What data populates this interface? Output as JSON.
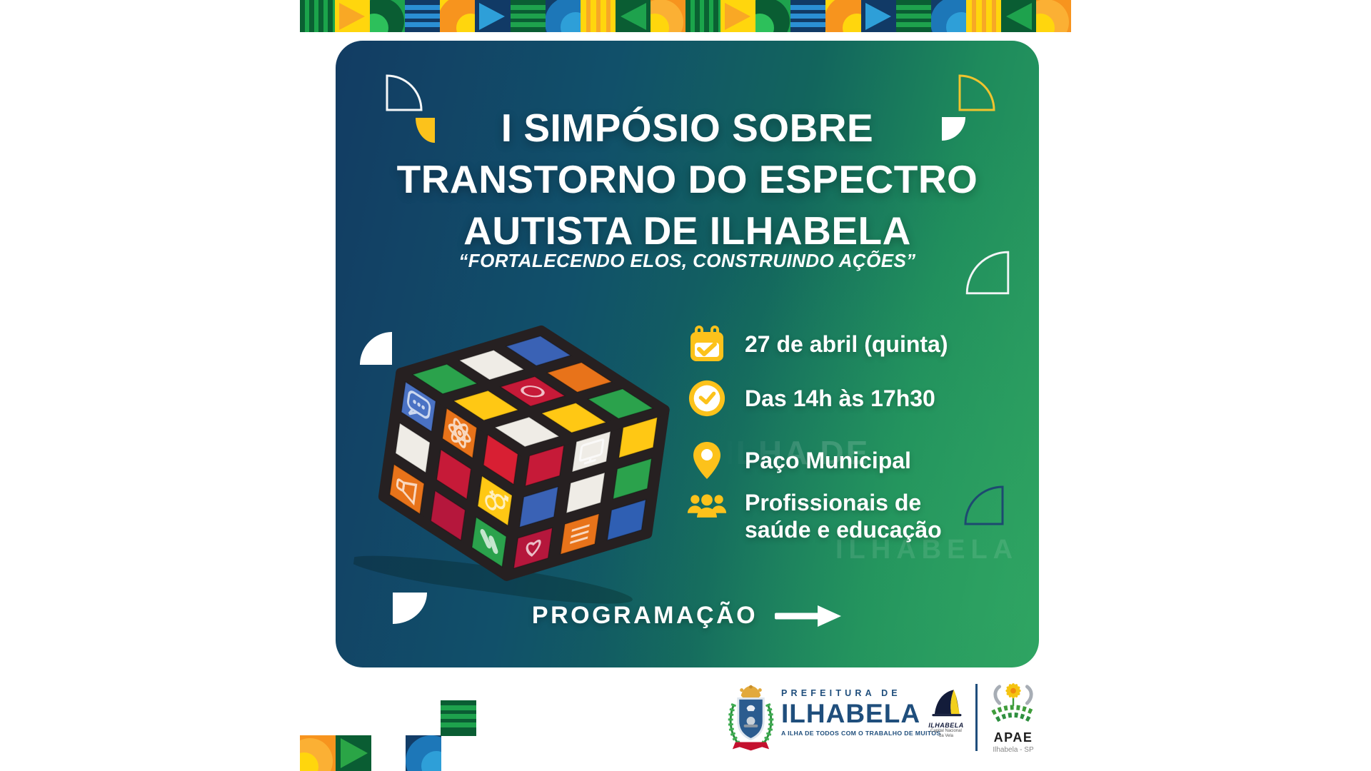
{
  "band": {
    "pattern": [
      "g-stripes",
      "y-tri",
      "g-quarter",
      "b-bars",
      "y-quarter",
      "b-tri",
      "g-bars",
      "b-quarter",
      "y-stripes",
      "g-tri-l",
      "o-quarter",
      "g-stripes",
      "y-tri",
      "g-quarter",
      "b-bars",
      "y-quarter",
      "b-tri",
      "g-bars",
      "b-quarter",
      "y-stripes",
      "g-tri-l",
      "o-quarter"
    ]
  },
  "flyer": {
    "title_lines": [
      "I SIMPÓSIO SOBRE",
      "TRANSTORNO DO ESPECTRO",
      "AUTISTA DE ILHABELA"
    ],
    "subtitle": "“FORTALECENDO ELOS, CONSTRUINDO AÇÕES”",
    "details": [
      {
        "icon": "calendar-check-icon",
        "text": "27 de abril (quinta)"
      },
      {
        "icon": "clock-icon",
        "text": "Das 14h às 17h30"
      },
      {
        "icon": "location-pin-icon",
        "text": "Paço Municipal"
      },
      {
        "icon": "people-icon",
        "text": "Profissionais de\nsaúde e educação"
      }
    ],
    "cta_label": "PROGRAMAÇÃO",
    "watermarks": [
      "ILHA DE",
      "ILHABELA"
    ]
  },
  "cube": {
    "face_top": [
      "#2ba24c",
      "#efece6",
      "#3a62b5",
      "#ffc814",
      "#c61a38",
      "#e8731a",
      "#efece6",
      "#ffc814",
      "#2ba24c"
    ],
    "face_left": [
      "#4a72c4",
      "#e8731a",
      "#d81f33",
      "#efece6",
      "#c61a38",
      "#ffc814",
      "#e8731a",
      "#b5173c",
      "#2ba24c"
    ],
    "face_right": [
      "#c61a38",
      "#efece6",
      "#ffc814",
      "#3a62b5",
      "#efece6",
      "#2ba24c",
      "#b5173c",
      "#e8731a",
      "#2f5fb3"
    ],
    "icons": [
      {
        "face": "left",
        "i": 0,
        "j": 0,
        "type": "speech"
      },
      {
        "face": "left",
        "i": 1,
        "j": 0,
        "type": "atom"
      },
      {
        "face": "left",
        "i": 2,
        "j": 1,
        "type": "gender"
      },
      {
        "face": "left",
        "i": 0,
        "j": 2,
        "type": "mega"
      },
      {
        "face": "left",
        "i": 2,
        "j": 2,
        "type": "pills"
      },
      {
        "face": "right",
        "i": 1,
        "j": 0,
        "type": "monitor"
      },
      {
        "face": "right",
        "i": 0,
        "j": 2,
        "type": "heart"
      },
      {
        "face": "right",
        "i": 1,
        "j": 2,
        "type": "list"
      },
      {
        "face": "top",
        "i": 1,
        "j": 1,
        "type": "ring"
      }
    ]
  },
  "footer": {
    "prefeitura": {
      "line1": "PREFEITURA DE",
      "line2": "ILHABELA",
      "tagline": "A ILHA DE TODOS COM O TRABALHO DE MUITOS"
    },
    "sail": {
      "name": "ILHABELA",
      "subtitle": "Capital Nacional\nda Vela"
    },
    "apae": {
      "name": "APAE",
      "location": "Ilhabela - SP"
    }
  },
  "colors": {
    "accent_yellow": "#fcc21b",
    "card_blue": "#123c63",
    "card_green": "#2da061",
    "prefeitura_blue": "#1f4e7c",
    "band_green": "#0a5d33",
    "band_orange": "#f7941e"
  }
}
